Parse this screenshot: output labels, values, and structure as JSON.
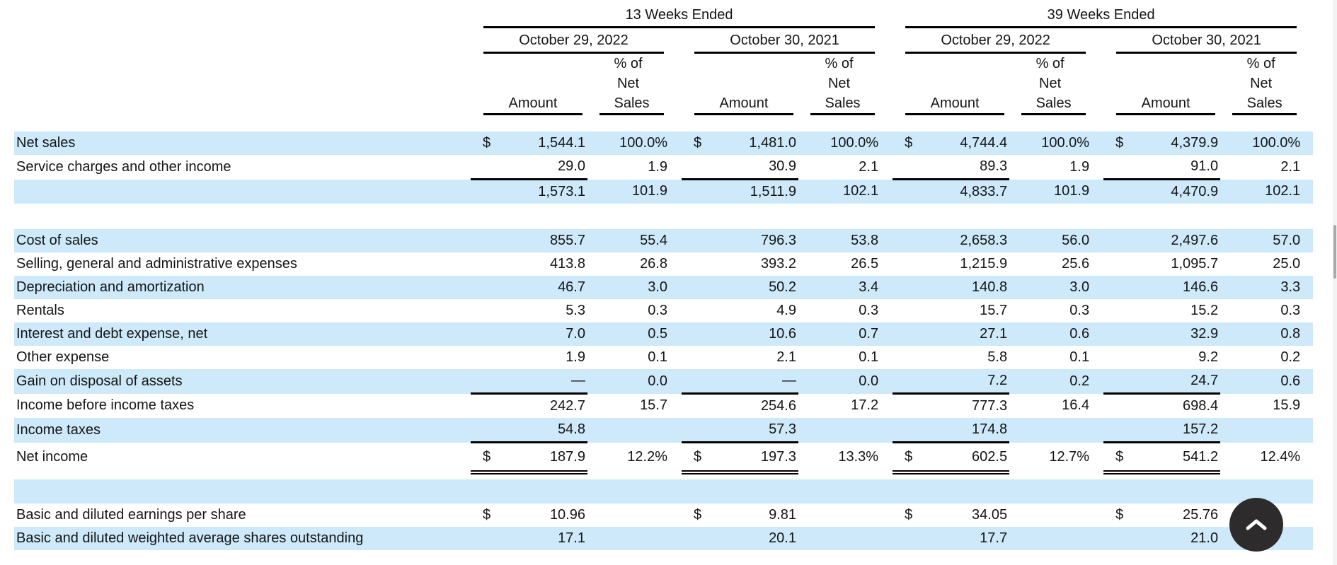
{
  "table": {
    "period_groups": [
      {
        "label": "13 Weeks Ended",
        "dates": [
          "October 29, 2022",
          "October 30, 2021"
        ]
      },
      {
        "label": "39 Weeks Ended",
        "dates": [
          "October 29, 2022",
          "October 30, 2021"
        ]
      }
    ],
    "col_headers": {
      "pct_line_1": "% of",
      "pct_line_2": "Net",
      "pct_line_3": "Sales",
      "amount": "Amount"
    },
    "rows": [
      {
        "kind": "gap",
        "gap": "head",
        "shade": false
      },
      {
        "kind": "data",
        "label": "Net sales",
        "shade": true,
        "rule": "",
        "cells": [
          [
            "$",
            "1,544.1",
            "100.0%"
          ],
          [
            "$",
            "1,481.0",
            "100.0%"
          ],
          [
            "$",
            "4,744.4",
            "100.0%"
          ],
          [
            "$",
            "4,379.9",
            "100.0%"
          ]
        ]
      },
      {
        "kind": "data",
        "label": "Service charges and other income",
        "shade": false,
        "rule": "single",
        "cells": [
          [
            "",
            "29.0",
            "1.9"
          ],
          [
            "",
            "30.9",
            "2.1"
          ],
          [
            "",
            "89.3",
            "1.9"
          ],
          [
            "",
            "91.0",
            "2.1"
          ]
        ]
      },
      {
        "kind": "data",
        "label": "",
        "shade": true,
        "rule": "",
        "cells": [
          [
            "",
            "1,573.1",
            "101.9"
          ],
          [
            "",
            "1,511.9",
            "102.1"
          ],
          [
            "",
            "4,833.7",
            "101.9"
          ],
          [
            "",
            "4,470.9",
            "102.1"
          ]
        ]
      },
      {
        "kind": "gap",
        "gap": "lg",
        "shade": false
      },
      {
        "kind": "data",
        "label": "Cost of sales",
        "shade": true,
        "rule": "",
        "cells": [
          [
            "",
            "855.7",
            "55.4"
          ],
          [
            "",
            "796.3",
            "53.8"
          ],
          [
            "",
            "2,658.3",
            "56.0"
          ],
          [
            "",
            "2,497.6",
            "57.0"
          ]
        ]
      },
      {
        "kind": "data",
        "label": "Selling, general and administrative expenses",
        "shade": false,
        "rule": "",
        "cells": [
          [
            "",
            "413.8",
            "26.8"
          ],
          [
            "",
            "393.2",
            "26.5"
          ],
          [
            "",
            "1,215.9",
            "25.6"
          ],
          [
            "",
            "1,095.7",
            "25.0"
          ]
        ]
      },
      {
        "kind": "data",
        "label": "Depreciation and amortization",
        "shade": true,
        "rule": "",
        "cells": [
          [
            "",
            "46.7",
            "3.0"
          ],
          [
            "",
            "50.2",
            "3.4"
          ],
          [
            "",
            "140.8",
            "3.0"
          ],
          [
            "",
            "146.6",
            "3.3"
          ]
        ]
      },
      {
        "kind": "data",
        "label": "Rentals",
        "shade": false,
        "rule": "",
        "cells": [
          [
            "",
            "5.3",
            "0.3"
          ],
          [
            "",
            "4.9",
            "0.3"
          ],
          [
            "",
            "15.7",
            "0.3"
          ],
          [
            "",
            "15.2",
            "0.3"
          ]
        ]
      },
      {
        "kind": "data",
        "label": "Interest and debt expense, net",
        "shade": true,
        "rule": "",
        "cells": [
          [
            "",
            "7.0",
            "0.5"
          ],
          [
            "",
            "10.6",
            "0.7"
          ],
          [
            "",
            "27.1",
            "0.6"
          ],
          [
            "",
            "32.9",
            "0.8"
          ]
        ]
      },
      {
        "kind": "data",
        "label": "Other expense",
        "shade": false,
        "rule": "",
        "cells": [
          [
            "",
            "1.9",
            "0.1"
          ],
          [
            "",
            "2.1",
            "0.1"
          ],
          [
            "",
            "5.8",
            "0.1"
          ],
          [
            "",
            "9.2",
            "0.2"
          ]
        ]
      },
      {
        "kind": "data",
        "label": "Gain on disposal of assets",
        "shade": true,
        "rule": "single",
        "cells": [
          [
            "",
            "—",
            "0.0"
          ],
          [
            "",
            "—",
            "0.0"
          ],
          [
            "",
            "7.2",
            "0.2"
          ],
          [
            "",
            "24.7",
            "0.6"
          ]
        ]
      },
      {
        "kind": "data",
        "label": "Income before income taxes",
        "shade": false,
        "rule": "",
        "cells": [
          [
            "",
            "242.7",
            "15.7"
          ],
          [
            "",
            "254.6",
            "17.2"
          ],
          [
            "",
            "777.3",
            "16.4"
          ],
          [
            "",
            "698.4",
            "15.9"
          ]
        ]
      },
      {
        "kind": "data",
        "label": "Income taxes",
        "shade": true,
        "rule": "single",
        "cells": [
          [
            "",
            "54.8",
            ""
          ],
          [
            "",
            "57.3",
            ""
          ],
          [
            "",
            "174.8",
            ""
          ],
          [
            "",
            "157.2",
            ""
          ]
        ]
      },
      {
        "kind": "data",
        "label": "Net income",
        "shade": false,
        "rule": "double",
        "tall": true,
        "cells": [
          [
            "$",
            "187.9",
            "12.2%"
          ],
          [
            "$",
            "197.3",
            "13.3%"
          ],
          [
            "$",
            "602.5",
            "12.7%"
          ],
          [
            "$",
            "541.2",
            "12.4%"
          ]
        ]
      },
      {
        "kind": "gap",
        "gap": "sm",
        "shade": false
      },
      {
        "kind": "gap",
        "gap": "blue",
        "shade": true
      },
      {
        "kind": "data",
        "label": "Basic and diluted earnings per share",
        "shade": false,
        "rule": "",
        "cells": [
          [
            "$",
            "10.96",
            ""
          ],
          [
            "$",
            "9.81",
            ""
          ],
          [
            "$",
            "34.05",
            ""
          ],
          [
            "$",
            "25.76",
            ""
          ]
        ]
      },
      {
        "kind": "data",
        "label": "Basic and diluted weighted average shares outstanding",
        "shade": true,
        "rule": "",
        "cells": [
          [
            "",
            "17.1",
            ""
          ],
          [
            "",
            "20.1",
            ""
          ],
          [
            "",
            "17.7",
            ""
          ],
          [
            "",
            "21.0",
            ""
          ]
        ]
      }
    ]
  },
  "scroll_button": {
    "icon": "chevron-up"
  },
  "colors": {
    "row_highlight": "#cde9fa",
    "rule_color": "#000000",
    "text_color": "#151515",
    "scroll_button_bg": "#2d2b2b",
    "scroll_button_icon": "#ffffff",
    "scrollbar_thumb": "#a9a9a9"
  }
}
